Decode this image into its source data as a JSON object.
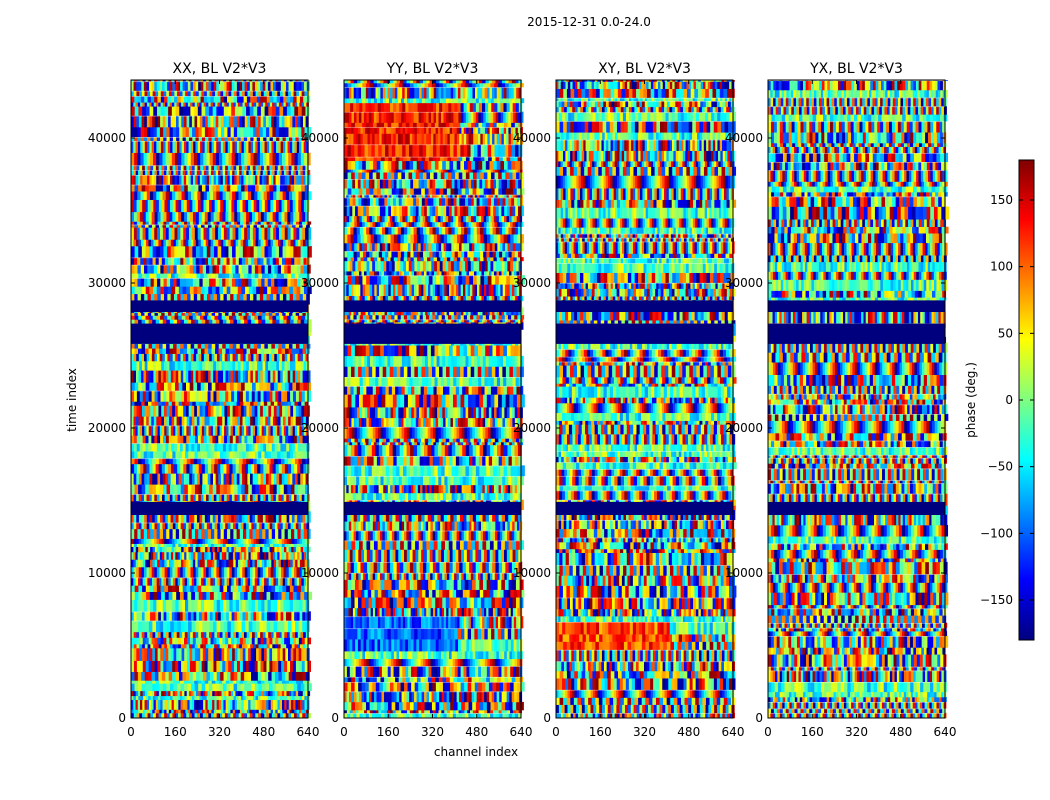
{
  "chart_data": {
    "type": "heatmap",
    "suptitle": "2015-12-31 0.0-24.0",
    "xlabel": "channel index",
    "ylabel": "time index",
    "xlim": [
      0,
      640
    ],
    "ylim": [
      0,
      44000
    ],
    "xticks": [
      0,
      160,
      320,
      480,
      640
    ],
    "xtick_labels": [
      "0",
      "160",
      "320",
      "480",
      "640"
    ],
    "yticks": [
      0,
      10000,
      20000,
      30000,
      40000
    ],
    "ytick_labels": [
      "0",
      "10000",
      "20000",
      "30000",
      "40000"
    ],
    "panels": [
      {
        "title": "XX, BL V2*V3",
        "seed": 11,
        "tint": 0
      },
      {
        "title": "YY, BL V2*V3",
        "seed": 23,
        "tint": 1
      },
      {
        "title": "XY, BL V2*V3",
        "seed": 37,
        "tint": 2
      },
      {
        "title": "YX, BL V2*V3",
        "seed": 53,
        "tint": 3
      }
    ],
    "flagged_time_ranges": [
      [
        25800,
        27200
      ],
      [
        28000,
        28800
      ],
      [
        14000,
        14900
      ]
    ],
    "colorbar": {
      "label": "phase (deg.)",
      "colormap": "jet",
      "range": [
        -180,
        180
      ],
      "ticks": [
        -150,
        -100,
        -50,
        0,
        50,
        100,
        150
      ],
      "tick_labels": [
        "−150",
        "−100",
        "−50",
        "0",
        "50",
        "100",
        "150"
      ]
    }
  }
}
